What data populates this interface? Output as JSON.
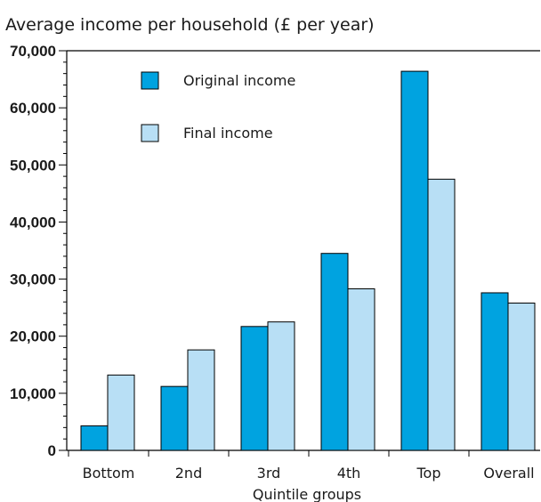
{
  "chart_data": {
    "type": "bar",
    "title": "Average income per household (£ per year)",
    "xlabel": "Quintile groups",
    "ylabel": "",
    "categories": [
      "Bottom",
      "2nd",
      "3rd",
      "4th",
      "Top",
      "Overall"
    ],
    "series": [
      {
        "name": "Original income",
        "color": "#00a3e0",
        "values": [
          4300,
          11200,
          21700,
          34500,
          66400,
          27600
        ]
      },
      {
        "name": "Final income",
        "color": "#b8dff5",
        "values": [
          13200,
          17600,
          22500,
          28300,
          47500,
          25800
        ]
      }
    ],
    "ylim": [
      0,
      70000
    ],
    "yticks": [
      0,
      10000,
      20000,
      30000,
      40000,
      50000,
      60000,
      70000
    ],
    "ytick_labels": [
      "0",
      "10,000",
      "20,000",
      "30,000",
      "40,000",
      "50,000",
      "60,000",
      "70,000"
    ],
    "grid": false,
    "legend_position": "top-left"
  }
}
